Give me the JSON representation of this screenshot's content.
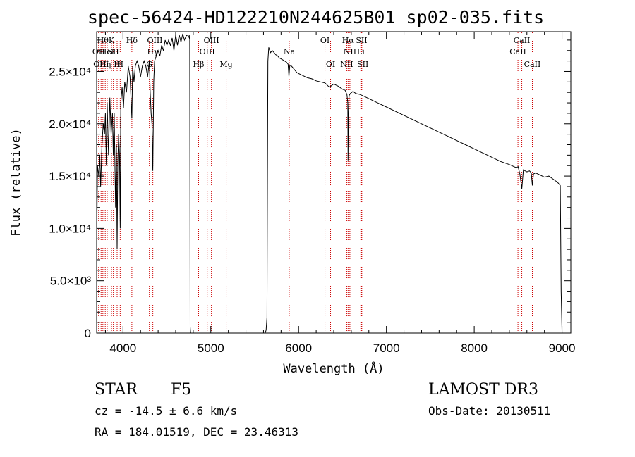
{
  "chart_data": {
    "type": "line",
    "title": "spec-56424-HD122210N244625B01_sp02-035.fits",
    "xlabel": "Wavelength (Å)",
    "ylabel": "Flux (relative)",
    "xlim": [
      3700,
      9100
    ],
    "ylim": [
      0,
      28800
    ],
    "xticks": [
      {
        "value": 4000,
        "label": "4000"
      },
      {
        "value": 5000,
        "label": "5000"
      },
      {
        "value": 6000,
        "label": "6000"
      },
      {
        "value": 7000,
        "label": "7000"
      },
      {
        "value": 8000,
        "label": "8000"
      },
      {
        "value": 9000,
        "label": "9000"
      }
    ],
    "yticks": [
      {
        "value": 0,
        "label": "0"
      },
      {
        "value": 5000,
        "label": "5.0×10³"
      },
      {
        "value": 10000,
        "label": "1.0×10⁴"
      },
      {
        "value": 15000,
        "label": "1.5×10⁴"
      },
      {
        "value": 20000,
        "label": "2.0×10⁴"
      },
      {
        "value": 25000,
        "label": "2.5×10⁴"
      }
    ],
    "spectrum": {
      "name": "flux",
      "x": [
        3700,
        3710,
        3725,
        3735,
        3745,
        3760,
        3775,
        3790,
        3800,
        3810,
        3820,
        3835,
        3850,
        3865,
        3880,
        3890,
        3900,
        3915,
        3925,
        3933,
        3940,
        3950,
        3960,
        3968,
        3975,
        3990,
        4005,
        4020,
        4040,
        4060,
        4080,
        4101,
        4110,
        4125,
        4140,
        4160,
        4180,
        4200,
        4220,
        4240,
        4260,
        4280,
        4300,
        4310,
        4320,
        4330,
        4340,
        4350,
        4360,
        4380,
        4400,
        4420,
        4440,
        4460,
        4480,
        4500,
        4520,
        4540,
        4560,
        4580,
        4600,
        4620,
        4640,
        4660,
        4680,
        4700,
        4720,
        4740,
        4755,
        4760,
        4765,
        4770,
        4780,
        5620,
        5630,
        5640,
        5645,
        5650,
        5660,
        5680,
        5700,
        5720,
        5740,
        5760,
        5780,
        5800,
        5820,
        5840,
        5860,
        5880,
        5890,
        5900,
        5920,
        5940,
        5960,
        5980,
        6000,
        6050,
        6100,
        6150,
        6200,
        6250,
        6300,
        6350,
        6400,
        6450,
        6500,
        6530,
        6550,
        6560,
        6563,
        6566,
        6575,
        6590,
        6620,
        6650,
        6700,
        6750,
        6800,
        6850,
        6900,
        7000,
        7100,
        7200,
        7300,
        7400,
        7500,
        7600,
        7700,
        7800,
        7900,
        8000,
        8100,
        8200,
        8300,
        8400,
        8480,
        8500,
        8520,
        8542,
        8560,
        8580,
        8600,
        8630,
        8650,
        8662,
        8675,
        8700,
        8750,
        8800,
        8850,
        8900,
        8950,
        8980,
        8990,
        9000
      ],
      "y": [
        8000,
        16000,
        15000,
        17000,
        14000,
        18000,
        20000,
        19000,
        21000,
        16000,
        22000,
        17000,
        22500,
        19000,
        21000,
        17000,
        21000,
        12000,
        18000,
        8000,
        16000,
        19000,
        17000,
        10000,
        22000,
        23500,
        21500,
        24000,
        23000,
        25500,
        24500,
        20500,
        25500,
        24000,
        25500,
        26000,
        25500,
        24500,
        25500,
        26000,
        25500,
        24500,
        26000,
        23000,
        21000,
        20000,
        15500,
        24000,
        26000,
        26500,
        27000,
        26500,
        27500,
        27000,
        28000,
        27500,
        28000,
        27500,
        28200,
        27000,
        28500,
        27500,
        28500,
        27800,
        28600,
        28000,
        28400,
        28500,
        28200,
        28500,
        600,
        0,
        0,
        0,
        300,
        1500,
        14000,
        26000,
        27300,
        26800,
        27000,
        26800,
        26600,
        26500,
        26300,
        26200,
        26100,
        26000,
        25900,
        25700,
        24500,
        25600,
        25500,
        25300,
        25100,
        24900,
        24800,
        24600,
        24400,
        24300,
        24100,
        24000,
        23900,
        23500,
        23800,
        23600,
        23300,
        23200,
        22800,
        22000,
        16500,
        20500,
        22700,
        22900,
        23100,
        22900,
        22800,
        22600,
        22400,
        22200,
        22000,
        21600,
        21200,
        20800,
        20400,
        20000,
        19600,
        19200,
        18800,
        18400,
        18000,
        17600,
        17200,
        16800,
        16400,
        16100,
        15800,
        15900,
        15200,
        13800,
        15600,
        15500,
        15400,
        15500,
        15300,
        14100,
        15200,
        15300,
        15100,
        14900,
        15000,
        14700,
        14400,
        14100,
        4000,
        0
      ]
    },
    "lines": [
      {
        "wl": 3722,
        "label": "OII",
        "row": 1
      },
      {
        "wl": 3750,
        "label": "OIII",
        "row": 2
      },
      {
        "wl": 3771,
        "label": "Hθ",
        "row": 0
      },
      {
        "wl": 3798,
        "label": "Hη",
        "row": 2
      },
      {
        "wl": 3820,
        "label": "HeI",
        "row": 1
      },
      {
        "wl": 3869,
        "label": "K",
        "row": 0
      },
      {
        "wl": 3890,
        "label": "SII",
        "row": 1
      },
      {
        "wl": 3933,
        "label": "H",
        "row": 2
      },
      {
        "wl": 3968,
        "label": "H",
        "row": 2
      },
      {
        "wl": 4101,
        "label": "Hδ",
        "row": 0
      },
      {
        "wl": 4300,
        "label": "G",
        "row": 2
      },
      {
        "wl": 4340,
        "label": "Hγ",
        "row": 1
      },
      {
        "wl": 4363,
        "label": "OIII",
        "row": 0
      },
      {
        "wl": 4861,
        "label": "Hβ",
        "row": 2
      },
      {
        "wl": 4959,
        "label": "OIII",
        "row": 1
      },
      {
        "wl": 5007,
        "label": "OIII",
        "row": 0
      },
      {
        "wl": 5175,
        "label": "Mg",
        "row": 2
      },
      {
        "wl": 5893,
        "label": "Na",
        "row": 1
      },
      {
        "wl": 6300,
        "label": "OI",
        "row": 0
      },
      {
        "wl": 6364,
        "label": "OI",
        "row": 2
      },
      {
        "wl": 6548,
        "label": "NII",
        "row": 2
      },
      {
        "wl": 6563,
        "label": "Hα",
        "row": 0
      },
      {
        "wl": 6584,
        "label": "NII",
        "row": 1
      },
      {
        "wl": 6708,
        "label": "Li",
        "row": 1
      },
      {
        "wl": 6717,
        "label": "SII",
        "row": 0
      },
      {
        "wl": 6731,
        "label": "SII",
        "row": 2
      },
      {
        "wl": 8498,
        "label": "CaII",
        "row": 1
      },
      {
        "wl": 8542,
        "label": "CaII",
        "row": 0
      },
      {
        "wl": 8662,
        "label": "CaII",
        "row": 2
      }
    ]
  },
  "info": {
    "object_class": "STAR",
    "subclass": "F5",
    "survey": "LAMOST DR3",
    "redshift": "cz = -14.5 ± 6.6 km/s",
    "obs_date": "Obs-Date: 20130511",
    "coords": "RA = 184.01519, DEC =  23.46313"
  },
  "colors": {
    "spectrum": "#000000",
    "line_marker": "#cc0000",
    "axis": "#000000"
  }
}
